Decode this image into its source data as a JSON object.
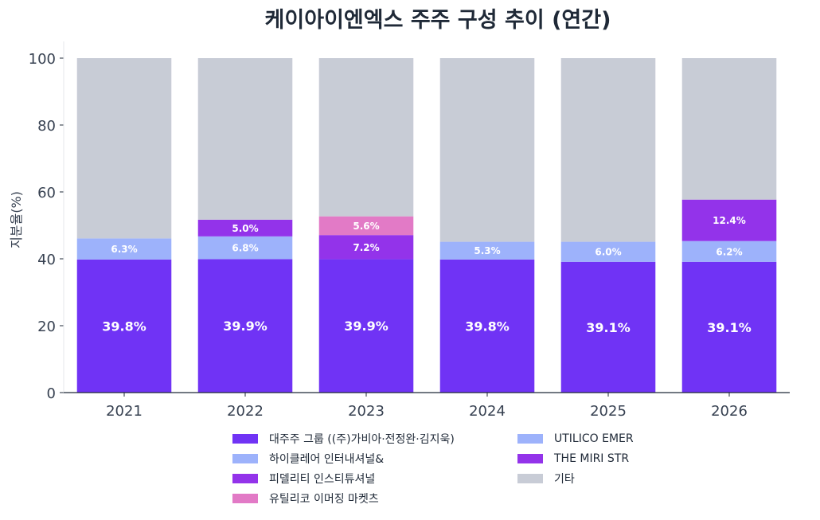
{
  "chart_data": {
    "type": "bar",
    "stacked": true,
    "title": "케이아이엔엑스 주주 구성 추이 (연간)",
    "ylabel": "지분율(%)",
    "xlabel": "",
    "ylim": [
      0,
      105
    ],
    "yticks": [
      "0",
      "20",
      "40",
      "60",
      "80",
      "100"
    ],
    "categories": [
      "2021",
      "2022",
      "2023",
      "2024",
      "2025",
      "2026"
    ],
    "legend_position": "bottom",
    "series": [
      {
        "name": "대주주 그룹 ((주)가비아·전정완·김지욱)",
        "color": "#7033f5",
        "values": [
          39.8,
          39.9,
          39.9,
          39.8,
          39.1,
          39.1
        ],
        "labels": [
          "39.8%",
          "39.9%",
          "39.9%",
          "39.8%",
          "39.1%",
          "39.1%"
        ]
      },
      {
        "name": "하이클레어 인터내셔널&",
        "color": "#9db2fb",
        "values": [
          6.3,
          6.8,
          0,
          0,
          0,
          0
        ],
        "labels": [
          "6.3%",
          "6.8%",
          "",
          "",
          "",
          ""
        ]
      },
      {
        "name": "피델리티 인스티튜셔널",
        "color": "#9333ea",
        "values": [
          0,
          5.0,
          7.2,
          0,
          0,
          0
        ],
        "labels": [
          "",
          "5.0%",
          "7.2%",
          "",
          "",
          ""
        ]
      },
      {
        "name": "유틸리코 이머징 마켓츠",
        "color": "#e27ac6",
        "values": [
          0,
          0,
          5.6,
          0,
          0,
          0
        ],
        "labels": [
          "",
          "",
          "5.6%",
          "",
          "",
          ""
        ]
      },
      {
        "name": "UTILICO EMER",
        "color": "#9db2fb",
        "values": [
          0,
          0,
          0,
          5.3,
          6.0,
          6.2
        ],
        "labels": [
          "",
          "",
          "",
          "5.3%",
          "6.0%",
          "6.2%"
        ]
      },
      {
        "name": "THE MIRI STR",
        "color": "#9333ea",
        "values": [
          0,
          0,
          0,
          0,
          0,
          12.4
        ],
        "labels": [
          "",
          "",
          "",
          "",
          "",
          "12.4%"
        ]
      },
      {
        "name": "기타",
        "color": "#c8ccd6",
        "values": [
          53.9,
          48.3,
          47.3,
          54.9,
          54.9,
          42.3
        ],
        "labels": [
          "",
          "",
          "",
          "",
          "",
          ""
        ]
      }
    ]
  }
}
